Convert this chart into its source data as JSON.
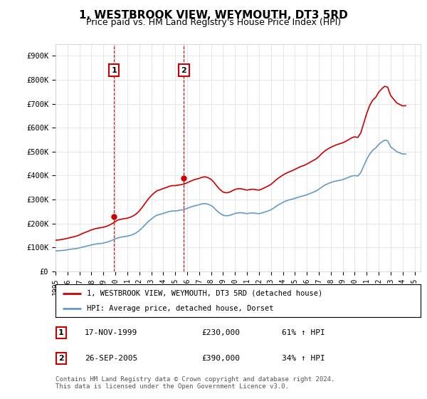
{
  "title": "1, WESTBROOK VIEW, WEYMOUTH, DT3 5RD",
  "subtitle": "Price paid vs. HM Land Registry's House Price Index (HPI)",
  "title_fontsize": 11,
  "subtitle_fontsize": 9,
  "ylim": [
    0,
    950000
  ],
  "yticks": [
    0,
    100000,
    200000,
    300000,
    400000,
    500000,
    600000,
    700000,
    800000,
    900000
  ],
  "ytick_labels": [
    "£0",
    "£100K",
    "£200K",
    "£300K",
    "£400K",
    "£500K",
    "£600K",
    "£700K",
    "£800K",
    "£900K"
  ],
  "sale1_x": 1999.88,
  "sale1_y": 230000,
  "sale2_x": 2005.73,
  "sale2_y": 390000,
  "line1_label": "1, WESTBROOK VIEW, WEYMOUTH, DT3 5RD (detached house)",
  "line2_label": "HPI: Average price, detached house, Dorset",
  "line1_color": "#cc0000",
  "line2_color": "#6699cc",
  "vline_color": "#cc0000",
  "table_row1": [
    "1",
    "17-NOV-1999",
    "£230,000",
    "61% ↑ HPI"
  ],
  "table_row2": [
    "2",
    "26-SEP-2005",
    "£390,000",
    "34% ↑ HPI"
  ],
  "footer": "Contains HM Land Registry data © Crown copyright and database right 2024.\nThis data is licensed under the Open Government Licence v3.0.",
  "hpi_years": [
    1995.0,
    1995.25,
    1995.5,
    1995.75,
    1996.0,
    1996.25,
    1996.5,
    1996.75,
    1997.0,
    1997.25,
    1997.5,
    1997.75,
    1998.0,
    1998.25,
    1998.5,
    1998.75,
    1999.0,
    1999.25,
    1999.5,
    1999.75,
    2000.0,
    2000.25,
    2000.5,
    2000.75,
    2001.0,
    2001.25,
    2001.5,
    2001.75,
    2002.0,
    2002.25,
    2002.5,
    2002.75,
    2003.0,
    2003.25,
    2003.5,
    2003.75,
    2004.0,
    2004.25,
    2004.5,
    2004.75,
    2005.0,
    2005.25,
    2005.5,
    2005.75,
    2006.0,
    2006.25,
    2006.5,
    2006.75,
    2007.0,
    2007.25,
    2007.5,
    2007.75,
    2008.0,
    2008.25,
    2008.5,
    2008.75,
    2009.0,
    2009.25,
    2009.5,
    2009.75,
    2010.0,
    2010.25,
    2010.5,
    2010.75,
    2011.0,
    2011.25,
    2011.5,
    2011.75,
    2012.0,
    2012.25,
    2012.5,
    2012.75,
    2013.0,
    2013.25,
    2013.5,
    2013.75,
    2014.0,
    2014.25,
    2014.5,
    2014.75,
    2015.0,
    2015.25,
    2015.5,
    2015.75,
    2016.0,
    2016.25,
    2016.5,
    2016.75,
    2017.0,
    2017.25,
    2017.5,
    2017.75,
    2018.0,
    2018.25,
    2018.5,
    2018.75,
    2019.0,
    2019.25,
    2019.5,
    2019.75,
    2020.0,
    2020.25,
    2020.5,
    2020.75,
    2021.0,
    2021.25,
    2021.5,
    2021.75,
    2022.0,
    2022.25,
    2022.5,
    2022.75,
    2023.0,
    2023.25,
    2023.5,
    2023.75,
    2024.0,
    2024.25
  ],
  "hpi_values": [
    85000,
    86000,
    87000,
    88000,
    90000,
    92000,
    94000,
    95000,
    98000,
    101000,
    104000,
    107000,
    110000,
    113000,
    115000,
    116000,
    118000,
    121000,
    125000,
    130000,
    136000,
    140000,
    143000,
    145000,
    147000,
    150000,
    155000,
    161000,
    170000,
    182000,
    195000,
    208000,
    218000,
    228000,
    235000,
    238000,
    242000,
    246000,
    250000,
    252000,
    252000,
    254000,
    256000,
    258000,
    263000,
    268000,
    272000,
    275000,
    278000,
    282000,
    283000,
    280000,
    275000,
    265000,
    252000,
    242000,
    234000,
    232000,
    233000,
    237000,
    242000,
    244000,
    245000,
    243000,
    241000,
    243000,
    244000,
    242000,
    241000,
    244000,
    248000,
    252000,
    257000,
    265000,
    274000,
    281000,
    288000,
    294000,
    298000,
    301000,
    305000,
    309000,
    313000,
    316000,
    320000,
    325000,
    330000,
    335000,
    343000,
    352000,
    360000,
    366000,
    371000,
    375000,
    378000,
    380000,
    383000,
    388000,
    393000,
    398000,
    400000,
    398000,
    412000,
    440000,
    468000,
    490000,
    506000,
    515000,
    530000,
    540000,
    548000,
    545000,
    520000,
    510000,
    500000,
    495000,
    490000,
    490000
  ],
  "red_years": [
    1995.0,
    1995.25,
    1995.5,
    1995.75,
    1996.0,
    1996.25,
    1996.5,
    1996.75,
    1997.0,
    1997.25,
    1997.5,
    1997.75,
    1998.0,
    1998.25,
    1998.5,
    1998.75,
    1999.0,
    1999.25,
    1999.5,
    1999.75,
    2000.0,
    2000.25,
    2000.5,
    2000.75,
    2001.0,
    2001.25,
    2001.5,
    2001.75,
    2002.0,
    2002.25,
    2002.5,
    2002.75,
    2003.0,
    2003.25,
    2003.5,
    2003.75,
    2004.0,
    2004.25,
    2004.5,
    2004.75,
    2005.0,
    2005.25,
    2005.5,
    2005.75,
    2006.0,
    2006.25,
    2006.5,
    2006.75,
    2007.0,
    2007.25,
    2007.5,
    2007.75,
    2008.0,
    2008.25,
    2008.5,
    2008.75,
    2009.0,
    2009.25,
    2009.5,
    2009.75,
    2010.0,
    2010.25,
    2010.5,
    2010.75,
    2011.0,
    2011.25,
    2011.5,
    2011.75,
    2012.0,
    2012.25,
    2012.5,
    2012.75,
    2013.0,
    2013.25,
    2013.5,
    2013.75,
    2014.0,
    2014.25,
    2014.5,
    2014.75,
    2015.0,
    2015.25,
    2015.5,
    2015.75,
    2016.0,
    2016.25,
    2016.5,
    2016.75,
    2017.0,
    2017.25,
    2017.5,
    2017.75,
    2018.0,
    2018.25,
    2018.5,
    2018.75,
    2019.0,
    2019.25,
    2019.5,
    2019.75,
    2020.0,
    2020.25,
    2020.5,
    2020.75,
    2021.0,
    2021.25,
    2021.5,
    2021.75,
    2022.0,
    2022.25,
    2022.5,
    2022.75,
    2023.0,
    2023.25,
    2023.5,
    2023.75,
    2024.0,
    2024.25
  ],
  "red_values": [
    130000,
    131000,
    133000,
    135000,
    138000,
    141000,
    144000,
    147000,
    152000,
    158000,
    163000,
    168000,
    173000,
    177000,
    180000,
    182000,
    184000,
    188000,
    193000,
    200000,
    208000,
    215000,
    218000,
    220000,
    222000,
    226000,
    232000,
    240000,
    252000,
    268000,
    285000,
    302000,
    316000,
    328000,
    337000,
    341000,
    346000,
    350000,
    355000,
    358000,
    358000,
    360000,
    362000,
    365000,
    370000,
    376000,
    381000,
    385000,
    388000,
    393000,
    395000,
    391000,
    384000,
    371000,
    355000,
    341000,
    331000,
    328000,
    330000,
    336000,
    342000,
    345000,
    345000,
    342000,
    339000,
    342000,
    343000,
    341000,
    339000,
    344000,
    350000,
    356000,
    363000,
    374000,
    385000,
    394000,
    402000,
    409000,
    415000,
    420000,
    426000,
    432000,
    438000,
    442000,
    448000,
    455000,
    462000,
    469000,
    479000,
    492000,
    503000,
    511000,
    518000,
    524000,
    529000,
    533000,
    537000,
    543000,
    550000,
    558000,
    562000,
    559000,
    578000,
    618000,
    660000,
    693000,
    715000,
    727000,
    748000,
    762000,
    773000,
    769000,
    734000,
    719000,
    704000,
    697000,
    691000,
    692000
  ],
  "xtick_years": [
    1995,
    1996,
    1997,
    1998,
    1999,
    2000,
    2001,
    2002,
    2003,
    2004,
    2005,
    2006,
    2007,
    2008,
    2009,
    2010,
    2011,
    2012,
    2013,
    2014,
    2015,
    2016,
    2017,
    2018,
    2019,
    2020,
    2021,
    2022,
    2023,
    2024,
    2025
  ],
  "background_color": "#ffffff",
  "plot_bg_color": "#ffffff",
  "grid_color": "#dddddd",
  "ann_y": 840000,
  "box_edge_color": "#cc0000"
}
